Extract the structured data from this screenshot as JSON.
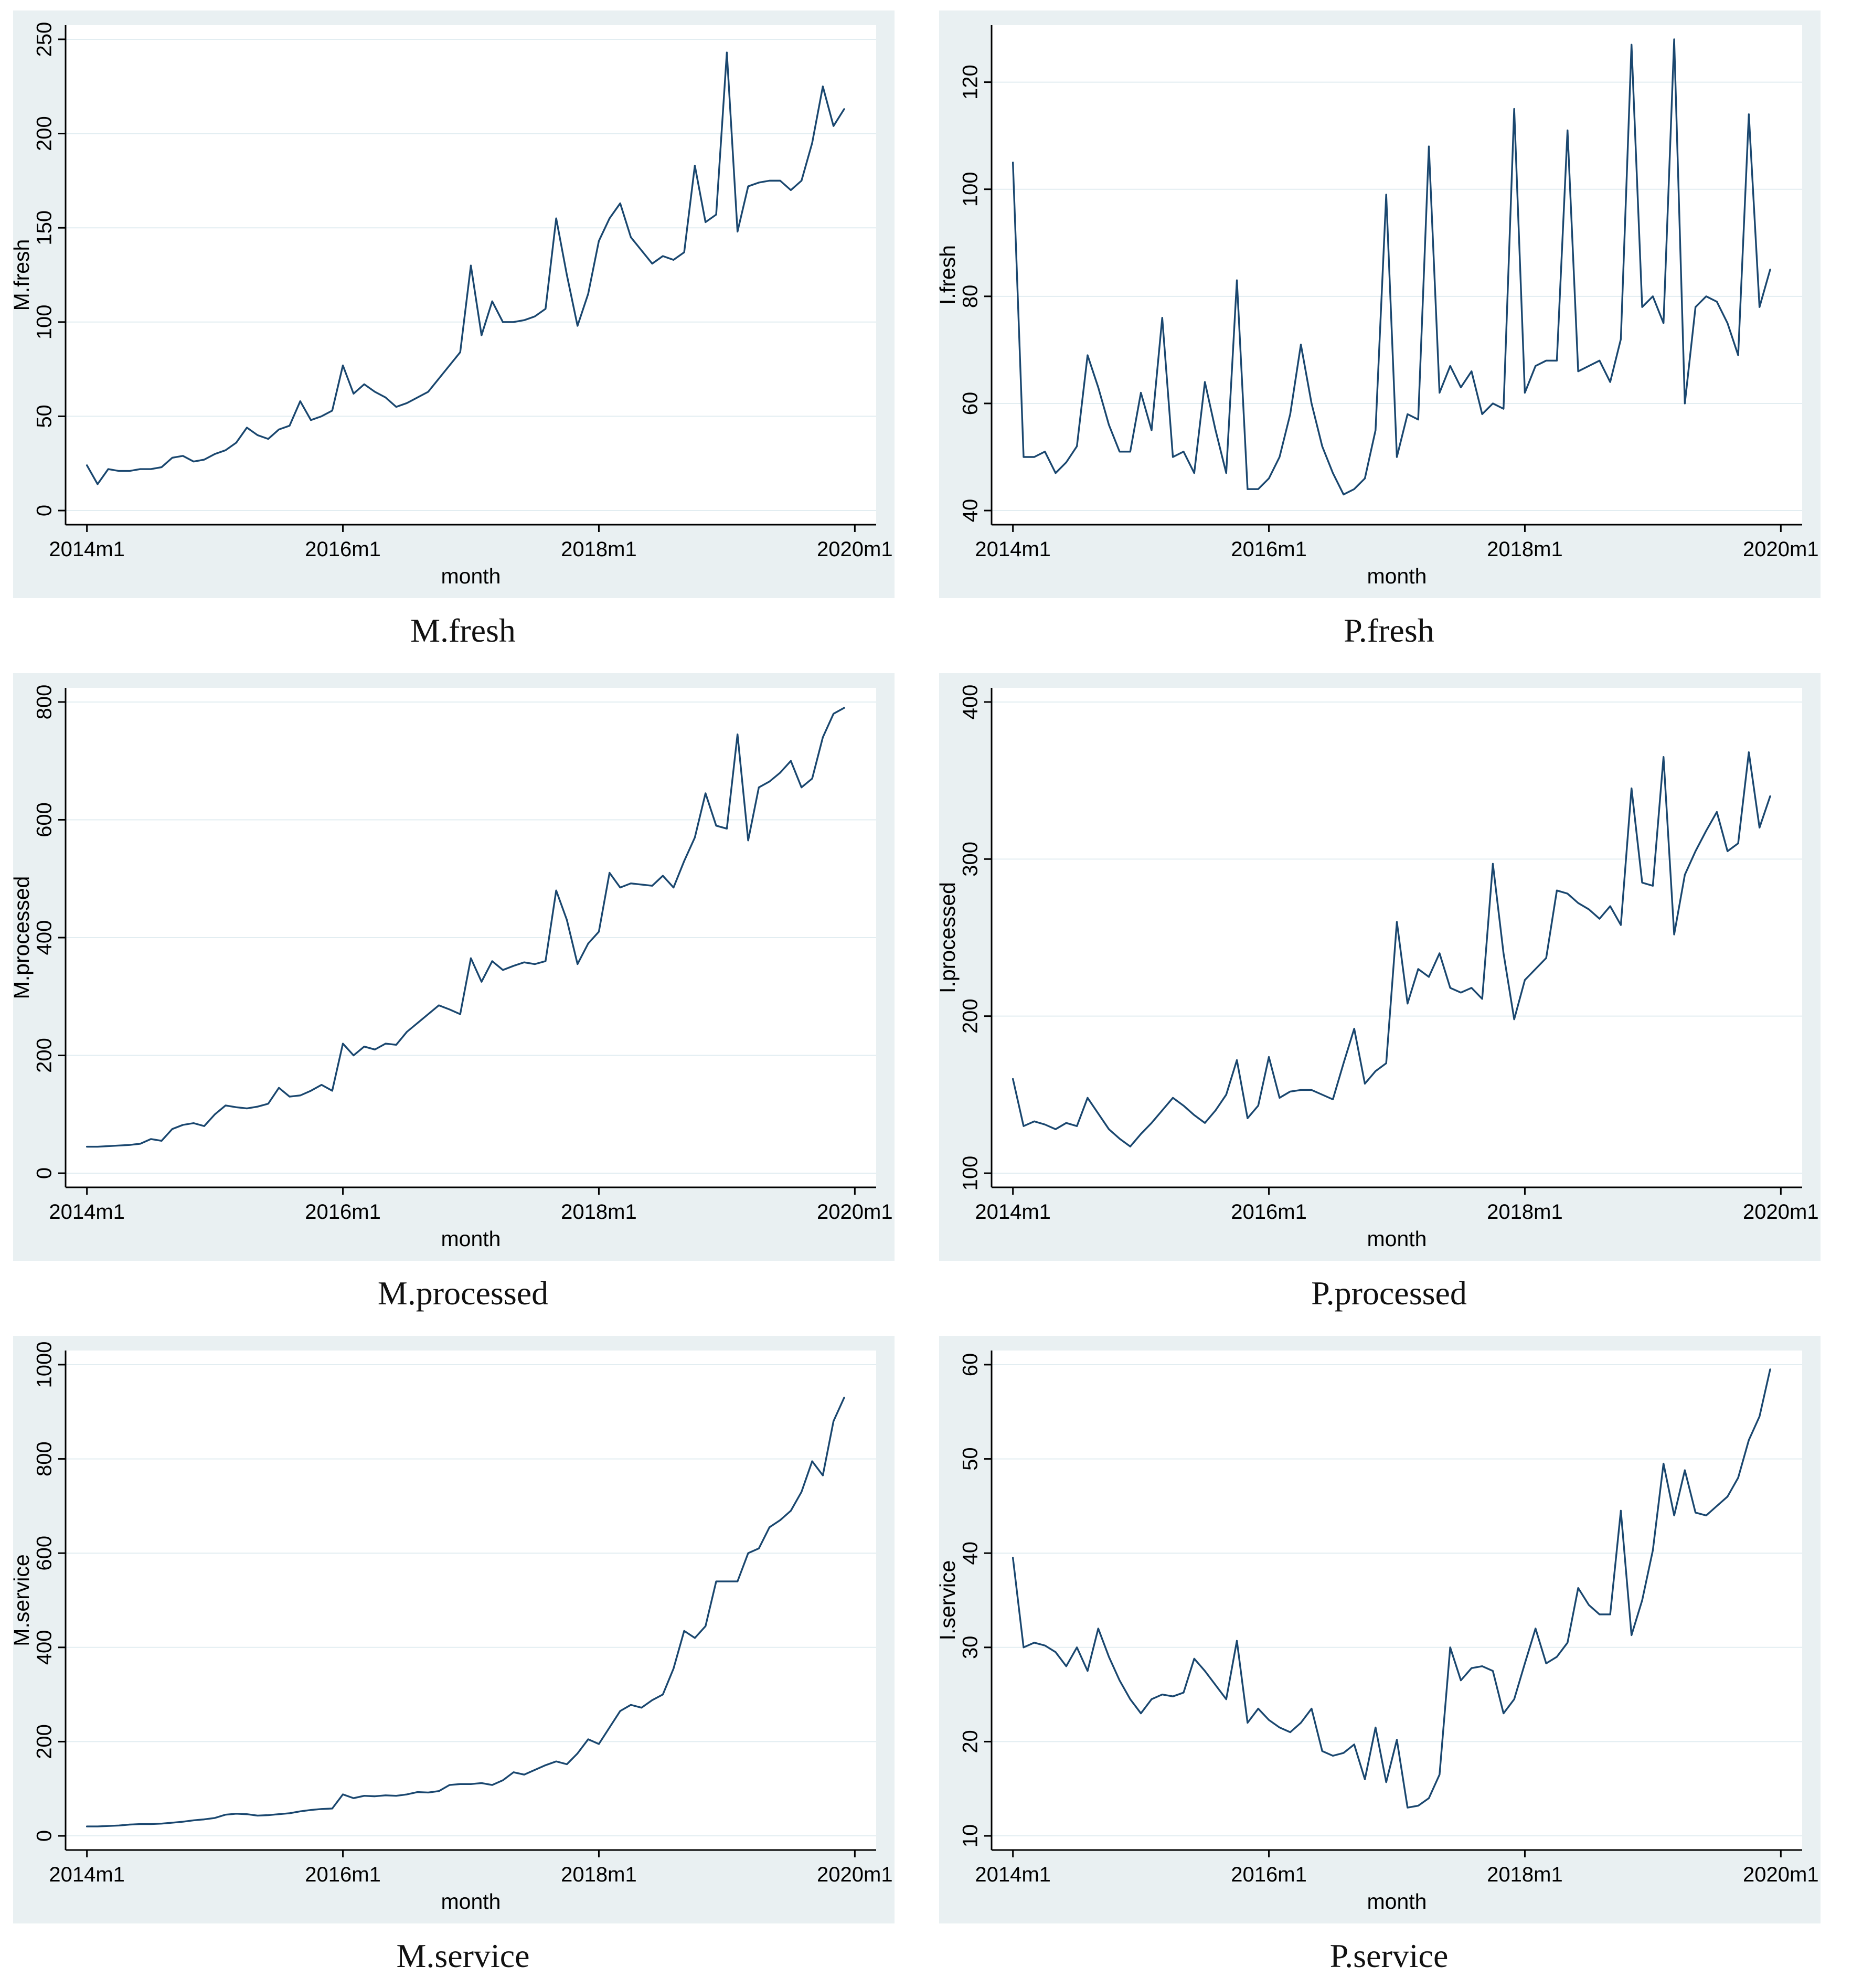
{
  "style": {
    "frame_background": "#e9f0f2",
    "plot_background": "#ffffff",
    "grid_color": "#e2edf1",
    "line_color": "#1a476f",
    "axis_color": "#000000"
  },
  "x_axis": {
    "label": "month",
    "tick_months": [
      0,
      24,
      48,
      72
    ],
    "tick_labels": [
      "2014m1",
      "2016m1",
      "2018m1",
      "2020m1"
    ],
    "domain_months": [
      -2,
      74
    ]
  },
  "chart_data": [
    {
      "type": "line",
      "title": "M.fresh",
      "ylabel": "M.fresh",
      "xlabel": "month",
      "yticks": [
        0,
        50,
        100,
        150,
        200,
        250
      ],
      "ylim": [
        0,
        250
      ],
      "x_start": "2014m1",
      "x_end": "2019m12",
      "x_tick_labels": [
        "2014m1",
        "2016m1",
        "2018m1",
        "2020m1"
      ],
      "values": [
        24,
        14,
        22,
        21,
        21,
        22,
        22,
        23,
        28,
        29,
        26,
        27,
        30,
        32,
        36,
        44,
        40,
        38,
        43,
        45,
        58,
        48,
        50,
        53,
        77,
        62,
        67,
        63,
        60,
        55,
        57,
        60,
        63,
        70,
        77,
        84,
        130,
        93,
        111,
        100,
        100,
        101,
        103,
        107,
        155,
        125,
        98,
        115,
        143,
        155,
        163,
        145,
        138,
        131,
        135,
        133,
        137,
        183,
        153,
        157,
        243,
        148,
        172,
        174,
        175,
        175,
        170,
        175,
        195,
        225,
        204,
        213
      ]
    },
    {
      "type": "line",
      "title": "P.fresh",
      "ylabel": "I.fresh",
      "xlabel": "month",
      "yticks": [
        40,
        60,
        80,
        100,
        120
      ],
      "ylim": [
        40,
        128
      ],
      "x_start": "2014m1",
      "x_end": "2019m12",
      "x_tick_labels": [
        "2014m1",
        "2016m1",
        "2018m1",
        "2020m1"
      ],
      "values": [
        105,
        50,
        50,
        51,
        47,
        49,
        52,
        69,
        63,
        56,
        51,
        51,
        62,
        55,
        76,
        50,
        51,
        47,
        64,
        55,
        47,
        83,
        44,
        44,
        46,
        50,
        58,
        71,
        60,
        52,
        47,
        43,
        44,
        46,
        55,
        99,
        50,
        58,
        57,
        108,
        62,
        67,
        63,
        66,
        58,
        60,
        59,
        115,
        62,
        67,
        68,
        68,
        111,
        66,
        67,
        68,
        64,
        72,
        127,
        78,
        80,
        75,
        128,
        60,
        78,
        80,
        79,
        75,
        69,
        114,
        78,
        85
      ]
    },
    {
      "type": "line",
      "title": "M.processed",
      "ylabel": "M.processed",
      "xlabel": "month",
      "yticks": [
        0,
        200,
        400,
        600,
        800
      ],
      "ylim": [
        0,
        800
      ],
      "x_start": "2014m1",
      "x_end": "2019m12",
      "x_tick_labels": [
        "2014m1",
        "2016m1",
        "2018m1",
        "2020m1"
      ],
      "values": [
        45,
        45,
        46,
        47,
        48,
        50,
        58,
        55,
        75,
        82,
        85,
        80,
        100,
        115,
        112,
        110,
        113,
        118,
        145,
        130,
        132,
        140,
        150,
        140,
        220,
        200,
        215,
        210,
        220,
        218,
        240,
        255,
        270,
        285,
        278,
        270,
        365,
        325,
        360,
        345,
        352,
        358,
        355,
        360,
        480,
        430,
        355,
        390,
        410,
        510,
        485,
        492,
        490,
        488,
        505,
        485,
        530,
        570,
        645,
        590,
        585,
        745,
        565,
        655,
        665,
        680,
        700,
        655,
        670,
        740,
        780,
        790
      ]
    },
    {
      "type": "line",
      "title": "P.processed",
      "ylabel": "I.processed",
      "xlabel": "month",
      "yticks": [
        100,
        200,
        300,
        400
      ],
      "ylim": [
        100,
        400
      ],
      "x_start": "2014m1",
      "x_end": "2019m12",
      "x_tick_labels": [
        "2014m1",
        "2016m1",
        "2018m1",
        "2020m1"
      ],
      "values": [
        160,
        130,
        133,
        131,
        128,
        132,
        130,
        148,
        138,
        128,
        122,
        117,
        125,
        132,
        140,
        148,
        143,
        137,
        132,
        140,
        150,
        172,
        135,
        143,
        174,
        148,
        152,
        153,
        153,
        150,
        147,
        170,
        192,
        157,
        165,
        170,
        260,
        208,
        230,
        225,
        240,
        218,
        215,
        218,
        211,
        297,
        240,
        198,
        223,
        230,
        237,
        280,
        278,
        272,
        268,
        262,
        270,
        258,
        345,
        285,
        283,
        365,
        252,
        290,
        305,
        318,
        330,
        305,
        310,
        368,
        320,
        340
      ]
    },
    {
      "type": "line",
      "title": "M.service",
      "ylabel": "M.service",
      "xlabel": "month",
      "yticks": [
        0,
        200,
        400,
        600,
        800,
        1000
      ],
      "ylim": [
        0,
        1000
      ],
      "x_start": "2014m1",
      "x_end": "2019m12",
      "x_tick_labels": [
        "2014m1",
        "2016m1",
        "2018m1",
        "2020m1"
      ],
      "values": [
        20,
        20,
        21,
        22,
        24,
        25,
        25,
        26,
        28,
        30,
        33,
        35,
        38,
        45,
        47,
        46,
        43,
        44,
        46,
        48,
        52,
        55,
        57,
        58,
        88,
        80,
        85,
        84,
        86,
        85,
        88,
        93,
        92,
        95,
        108,
        110,
        110,
        112,
        108,
        118,
        135,
        130,
        140,
        150,
        158,
        152,
        175,
        205,
        195,
        230,
        265,
        278,
        272,
        288,
        300,
        355,
        435,
        420,
        445,
        540,
        540,
        540,
        600,
        610,
        655,
        670,
        690,
        730,
        795,
        765,
        880,
        930
      ]
    },
    {
      "type": "line",
      "title": "P.service",
      "ylabel": "I.service",
      "xlabel": "month",
      "yticks": [
        10,
        20,
        30,
        40,
        50,
        60
      ],
      "ylim": [
        10,
        60
      ],
      "x_start": "2014m1",
      "x_end": "2019m12",
      "x_tick_labels": [
        "2014m1",
        "2016m1",
        "2018m1",
        "2020m1"
      ],
      "values": [
        39.5,
        30,
        30.5,
        30.2,
        29.5,
        28,
        30,
        27.5,
        32,
        29,
        26.5,
        24.5,
        23,
        24.5,
        25,
        24.8,
        25.2,
        28.8,
        27.5,
        26,
        24.5,
        30.7,
        22,
        23.5,
        22.3,
        21.5,
        21,
        22,
        23.5,
        19,
        18.5,
        18.8,
        19.7,
        16,
        21.5,
        15.7,
        20.2,
        13,
        13.2,
        14,
        16.5,
        30,
        26.5,
        27.8,
        28,
        27.5,
        23,
        24.5,
        28.3,
        32,
        28.3,
        29,
        30.5,
        36.3,
        34.5,
        33.5,
        33.5,
        44.5,
        31.3,
        35,
        40.3,
        49.5,
        44,
        48.8,
        44.3,
        44,
        45,
        46,
        48,
        52,
        54.5,
        59.5
      ]
    }
  ]
}
